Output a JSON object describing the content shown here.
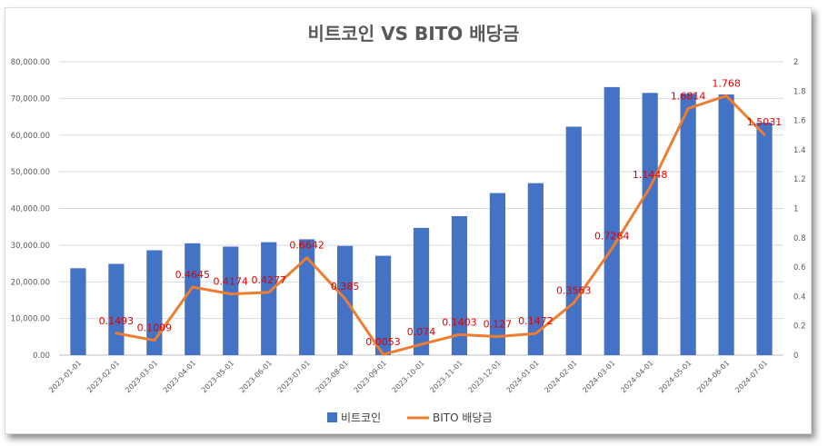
{
  "chart_data": {
    "type": "bar",
    "title": "비트코인 VS BITO 배당금",
    "categories": [
      "2023-01-01",
      "2023-02-01",
      "2023-03-01",
      "2023-04-01",
      "2023-05-01",
      "2023-06-01",
      "2023-07-01",
      "2023-08-01",
      "2023-09-01",
      "2023-10-01",
      "2023-11-01",
      "2023-12-01",
      "2024-01-01",
      "2024-02-01",
      "2024-03-01",
      "2024-04-01",
      "2024-05-01",
      "2024-06-01",
      "2024-07-01"
    ],
    "series": [
      {
        "name": "비트코인",
        "type": "bar",
        "axis": "left",
        "color": "#4472c4",
        "values": [
          23700,
          24900,
          28600,
          30500,
          29600,
          30800,
          31600,
          29800,
          27100,
          34700,
          37900,
          44200,
          46900,
          62300,
          73100,
          71500,
          71300,
          71100,
          63400
        ]
      },
      {
        "name": "BITO 배당금",
        "type": "line",
        "axis": "right",
        "color": "#ed7d31",
        "values": [
          null,
          0.1493,
          0.1009,
          0.4645,
          0.4174,
          0.4277,
          0.6642,
          0.385,
          0.0053,
          0.074,
          0.1403,
          0.127,
          0.1472,
          0.3563,
          0.7264,
          1.1448,
          1.6814,
          1.768,
          1.5031
        ],
        "labels": [
          "",
          "0.1493",
          "0.1009",
          "0.4645",
          "0.4174",
          "0.4277",
          "0.6642",
          "0.385",
          "0.0053",
          "0.074",
          "0.1403",
          "0.127",
          "0.1472",
          "0.3563",
          "0.7264",
          "1.1448",
          "1.6814",
          "1.768",
          "1.5031"
        ]
      }
    ],
    "y_left": {
      "ylim": [
        0,
        80000
      ],
      "ticks": [
        "0.00",
        "10,000.00",
        "20,000.00",
        "30,000.00",
        "40,000.00",
        "50,000.00",
        "60,000.00",
        "70,000.00",
        "80,000.00"
      ]
    },
    "y_right": {
      "ylim": [
        0,
        2
      ],
      "ticks": [
        "0",
        "0.2",
        "0.4",
        "0.6",
        "0.8",
        "1",
        "1.2",
        "1.4",
        "1.6",
        "1.8",
        "2"
      ]
    },
    "grid": true,
    "legend": "bottom",
    "label_color": "#e00000"
  }
}
